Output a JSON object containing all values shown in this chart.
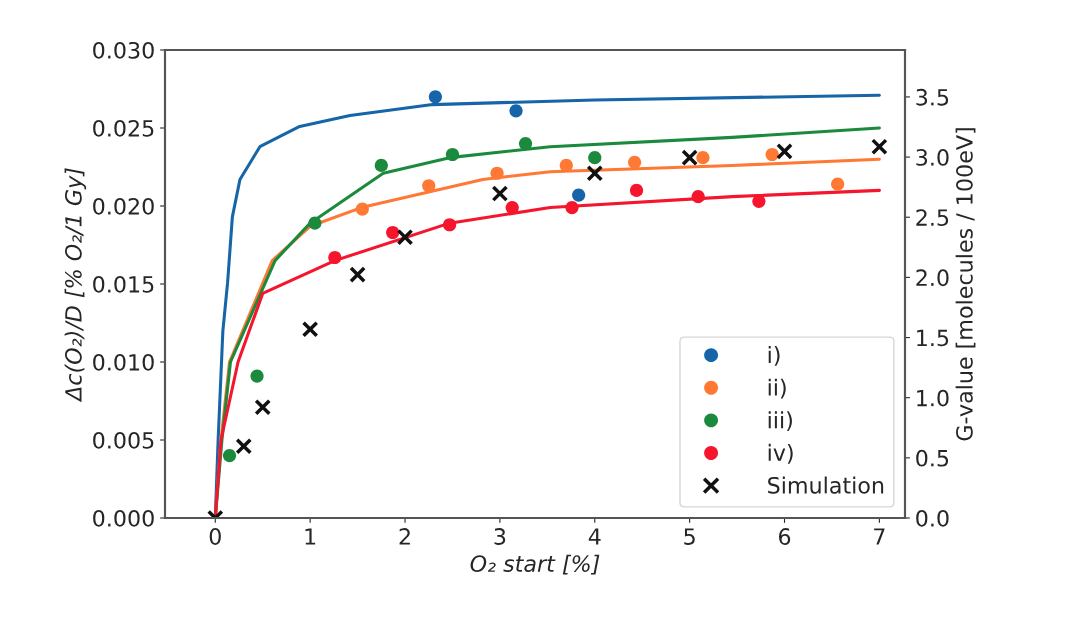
{
  "chart_data": {
    "type": "scatter",
    "xlabel": "O₂ start [%]",
    "ylabel": "Δc(O₂)/D [% O₂/1 Gy]",
    "y2label": "G-value [molecules / 100eV]",
    "xlim": [
      -0.53,
      7.27
    ],
    "xticks": [
      0,
      1,
      2,
      3,
      4,
      5,
      6,
      7
    ],
    "ylim": [
      0,
      0.03
    ],
    "yticks": [
      {
        "value": 0,
        "label": "0.000"
      },
      {
        "value": 0.005,
        "label": "0.005"
      },
      {
        "value": 0.01,
        "label": "0.010"
      },
      {
        "value": 0.015,
        "label": "0.015"
      },
      {
        "value": 0.02,
        "label": "0.020"
      },
      {
        "value": 0.025,
        "label": "0.025"
      },
      {
        "value": 0.03,
        "label": "0.030"
      }
    ],
    "y2lim": [
      0,
      3.89
    ],
    "y2ticks": [
      {
        "value": 0,
        "label": "0.0"
      },
      {
        "value": 0.5,
        "label": "0.5"
      },
      {
        "value": 1,
        "label": "1.0"
      },
      {
        "value": 1.5,
        "label": "1.5"
      },
      {
        "value": 2,
        "label": "2.0"
      },
      {
        "value": 2.5,
        "label": "2.5"
      },
      {
        "value": 3,
        "label": "3.0"
      },
      {
        "value": 3.5,
        "label": "3.5"
      }
    ],
    "grid": false,
    "legend": "bottom right",
    "series": [
      {
        "type": "line",
        "line_style": "solid",
        "color": "#1565a8",
        "x": [
          0,
          0.03,
          0.08,
          0.13,
          0.18,
          0.26,
          0.47,
          0.89,
          1.42,
          2.29,
          4.0,
          7.0
        ],
        "values": [
          0,
          0.005,
          0.012,
          0.0151,
          0.0193,
          0.0217,
          0.0238,
          0.0251,
          0.0258,
          0.0265,
          0.0268,
          0.0271
        ]
      },
      {
        "type": "line",
        "line_style": "solid",
        "color": "#ff7834",
        "x": [
          0,
          0.06,
          0.15,
          0.6,
          1.0,
          1.54,
          2.82,
          3.53,
          5.45,
          7.0
        ],
        "values": [
          0,
          0.005,
          0.01,
          0.0165,
          0.0187,
          0.0199,
          0.0217,
          0.0222,
          0.0226,
          0.023
        ]
      },
      {
        "type": "line",
        "line_style": "solid",
        "color": "#1b8a3c",
        "x": [
          0,
          0.07,
          0.16,
          0.63,
          1.0,
          1.77,
          2.47,
          3.53,
          5.45,
          7.0
        ],
        "values": [
          0,
          0.005,
          0.01,
          0.0165,
          0.0189,
          0.0221,
          0.0231,
          0.0238,
          0.0244,
          0.025
        ]
      },
      {
        "type": "line",
        "line_style": "solid",
        "color": "#f5152d",
        "x": [
          0,
          0.06,
          0.24,
          0.5,
          1.26,
          2.47,
          3.53,
          5.45,
          7.0
        ],
        "values": [
          0,
          0.005,
          0.01,
          0.0144,
          0.0165,
          0.0189,
          0.0199,
          0.0206,
          0.021
        ]
      },
      {
        "name": "i)",
        "marker": "circle",
        "color": "#1565a8",
        "x": [
          2.32,
          3.17,
          3.83
        ],
        "values": [
          0.027,
          0.0261,
          0.0207
        ]
      },
      {
        "name": "ii)",
        "marker": "circle",
        "color": "#ff7834",
        "x": [
          1.55,
          2.25,
          2.97,
          3.7,
          4.42,
          5.14,
          5.87,
          6.56
        ],
        "values": [
          0.0198,
          0.0213,
          0.0221,
          0.0226,
          0.0228,
          0.0231,
          0.0233,
          0.0214
        ]
      },
      {
        "name": "iii)",
        "marker": "circle",
        "color": "#1b8a3c",
        "x": [
          0.15,
          0.44,
          1.05,
          1.75,
          2.5,
          3.27,
          4.0
        ],
        "values": [
          0.004,
          0.0091,
          0.0189,
          0.0226,
          0.0233,
          0.024,
          0.0231
        ]
      },
      {
        "name": "iv)",
        "marker": "circle",
        "color": "#f5152d",
        "x": [
          1.26,
          1.87,
          2.47,
          3.13,
          3.76,
          4.44,
          5.09,
          5.73
        ],
        "values": [
          0.0167,
          0.0183,
          0.0188,
          0.0199,
          0.0199,
          0.021,
          0.0206,
          0.0203
        ]
      },
      {
        "name": "Simulation",
        "marker": "cross",
        "color": "#111111",
        "x": [
          0,
          0.3,
          0.5,
          1.0,
          1.5,
          2.0,
          3.0,
          4.0,
          5.0,
          6.0,
          7.0
        ],
        "values": [
          0,
          0.0046,
          0.0071,
          0.0121,
          0.0156,
          0.018,
          0.0208,
          0.0221,
          0.0231,
          0.0235,
          0.0238
        ]
      }
    ]
  }
}
